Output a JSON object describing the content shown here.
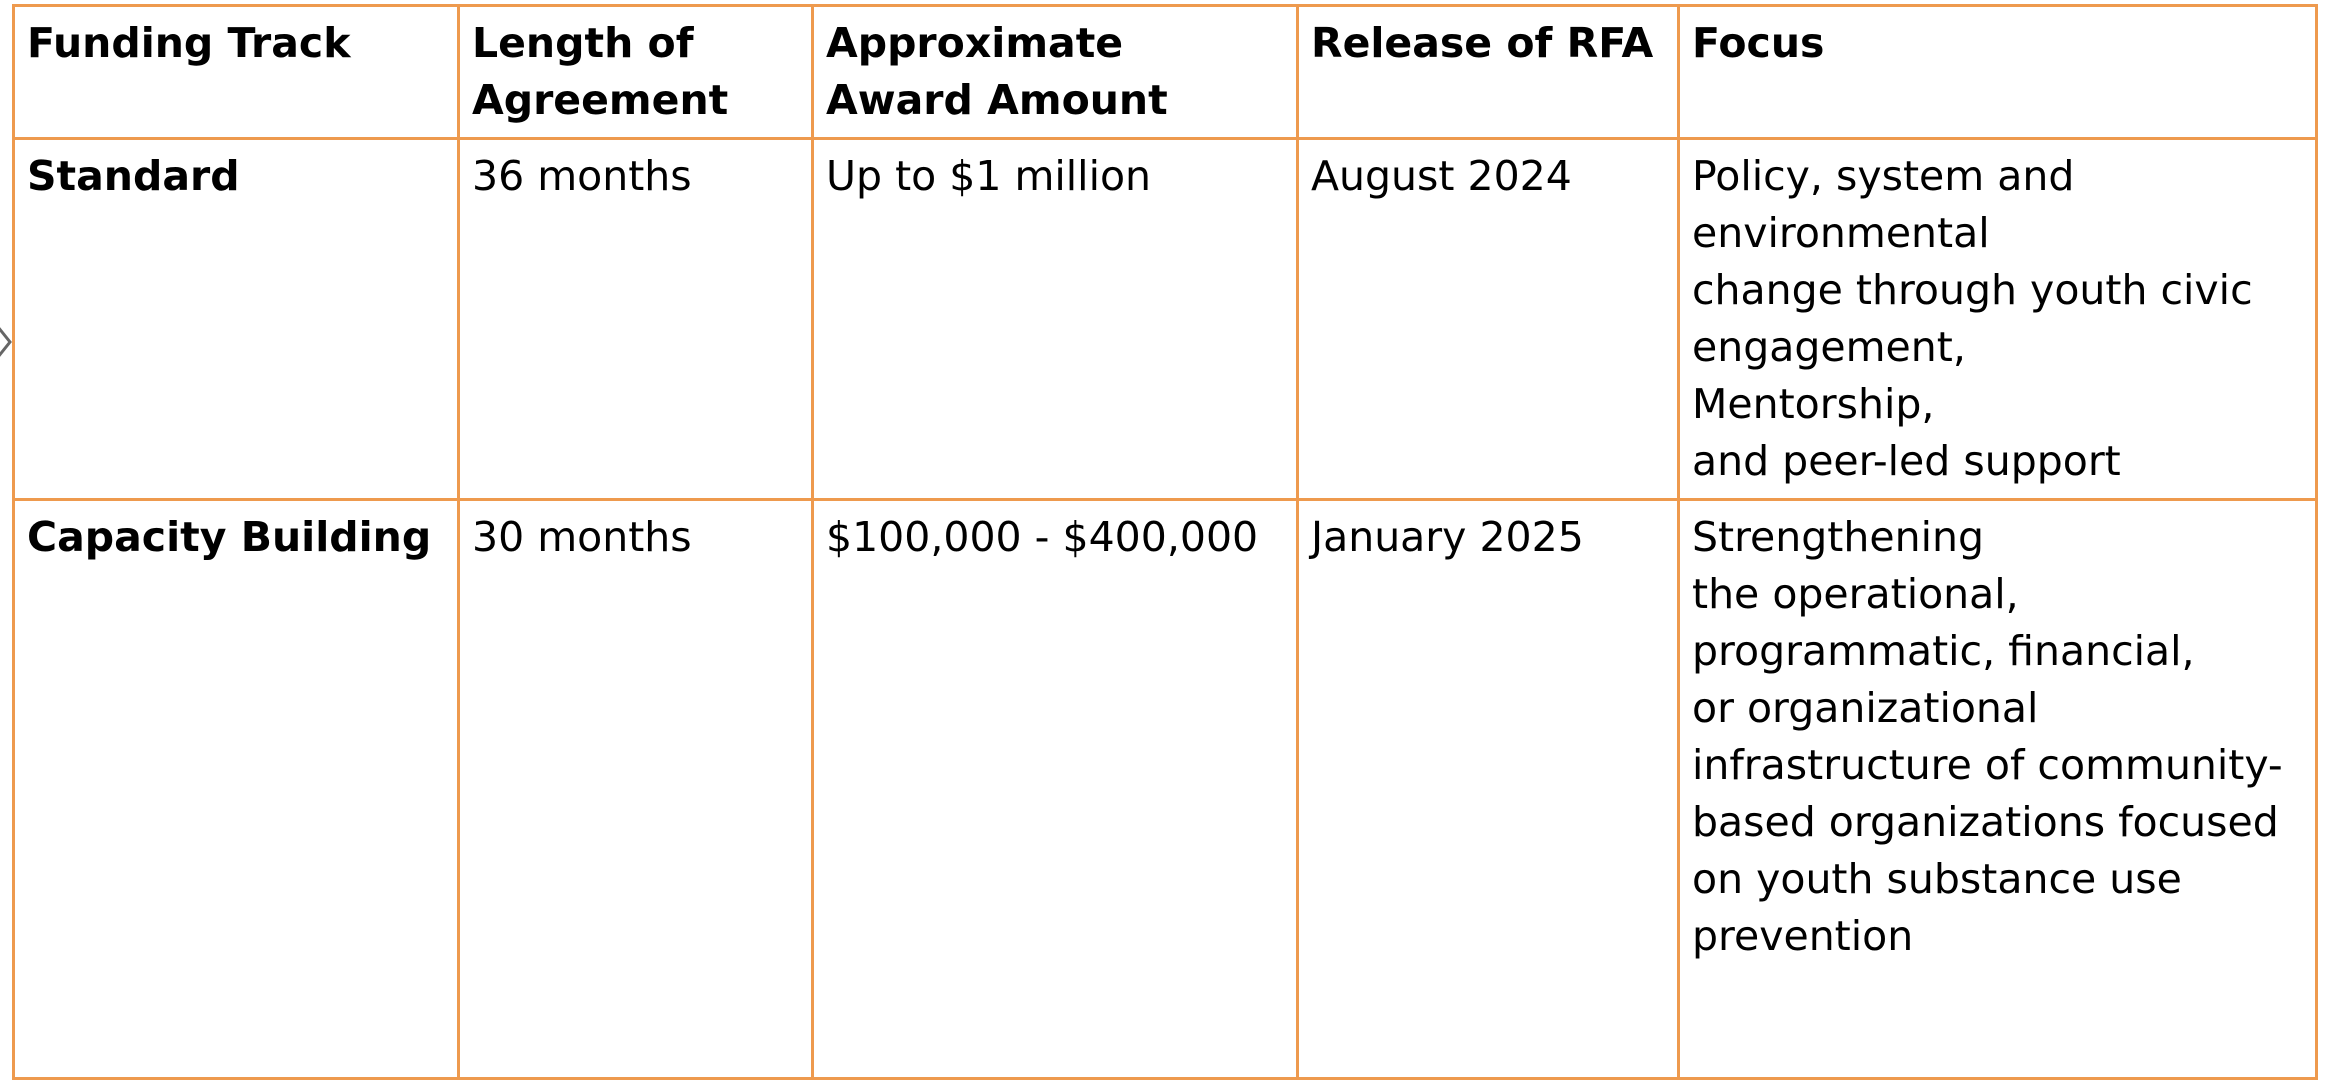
{
  "table": {
    "header": [
      "Funding Track",
      "Length of Agreement",
      "Approximate Award Amount",
      "Release of RFA",
      "Focus"
    ],
    "rows": [
      [
        "Standard",
        "36 months",
        "Up to $1 million",
        "August 2024",
        "Policy, system and\nenvironmental\nchange through youth civic\nengagement,\nMentorship,\nand peer-led support"
      ],
      [
        "Capacity Building",
        "30 months",
        "$100,000 - $400,000",
        "January 2025",
        "Strengthening\nthe operational,\nprogrammatic, financial,\nor organizational\ninfrastructure of community-\nbased organizations focused\non youth substance use\nprevention"
      ]
    ]
  }
}
